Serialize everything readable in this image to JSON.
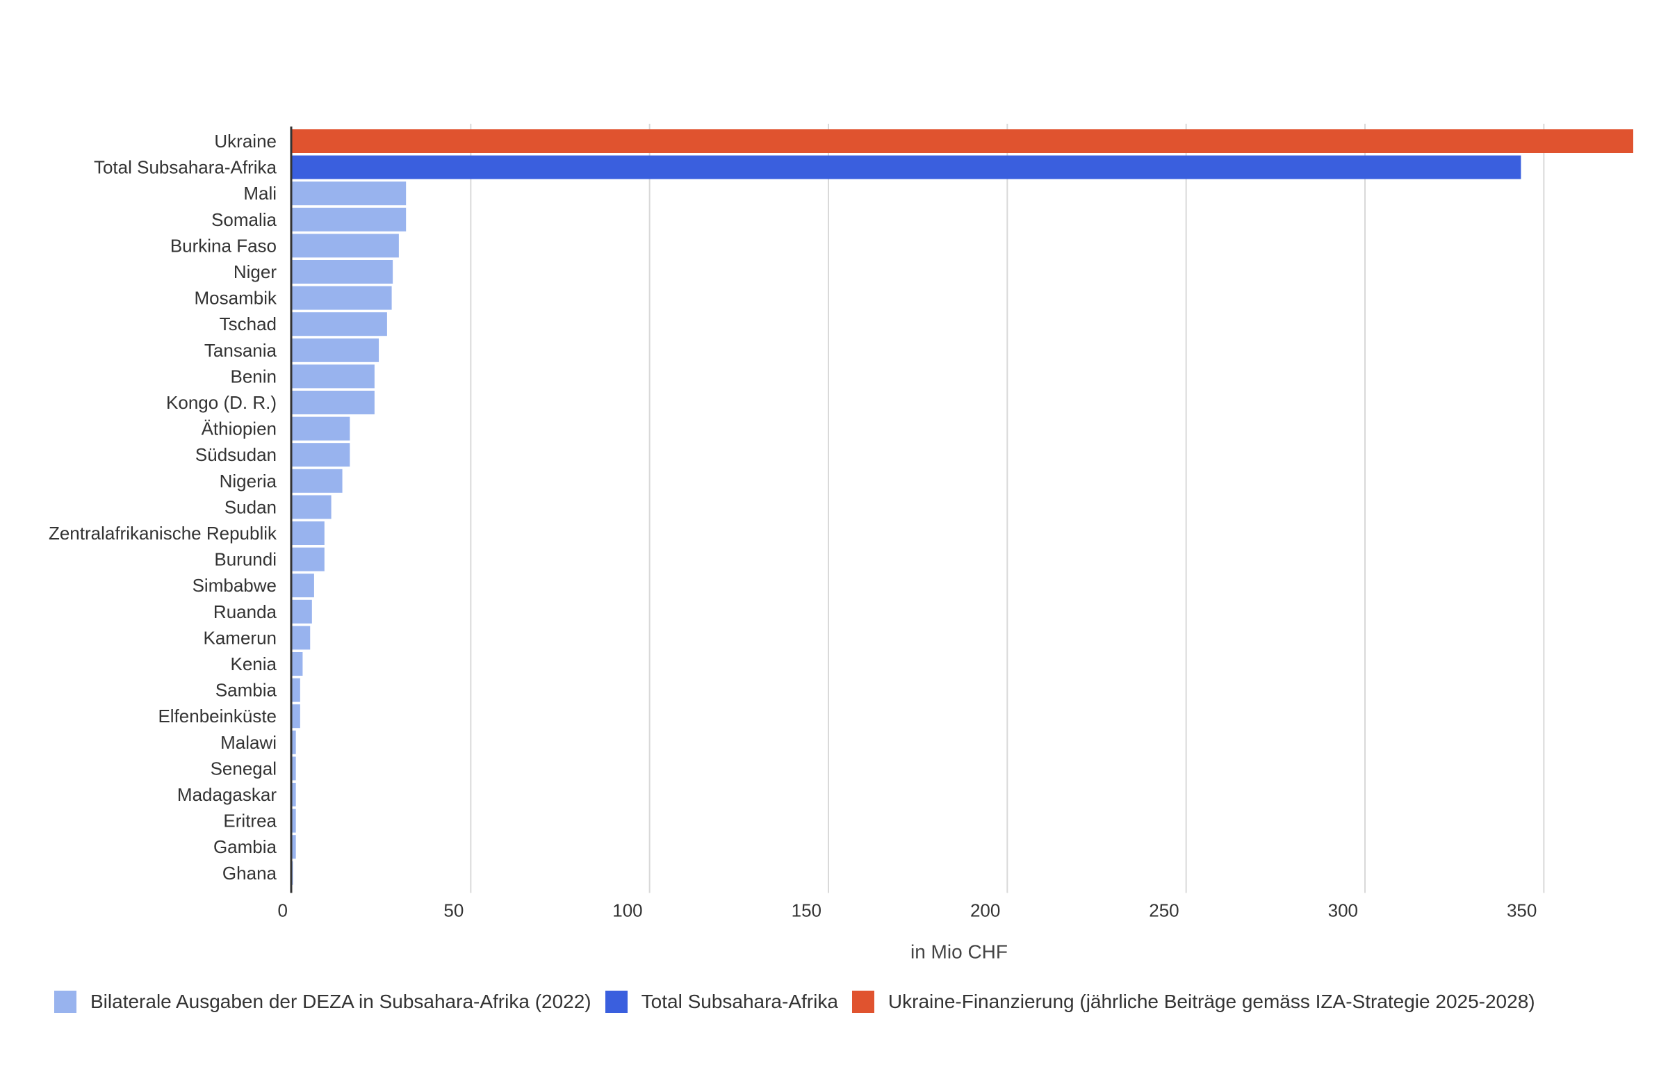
{
  "chart_data": {
    "type": "bar",
    "orientation": "horizontal",
    "categories": [
      "Ukraine",
      "Total Subsahara-Afrika",
      "Mali",
      "Somalia",
      "Burkina Faso",
      "Niger",
      "Mosambik",
      "Tschad",
      "Tansania",
      "Benin",
      "Kongo (D. R.)",
      "Äthiopien",
      "Südsudan",
      "Nigeria",
      "Sudan",
      "Zentralafrikanische Republik",
      "Burundi",
      "Simbabwe",
      "Ruanda",
      "Kamerun",
      "Kenia",
      "Sambia",
      "Elfenbeinküste",
      "Malawi",
      "Senegal",
      "Madagaskar",
      "Eritrea",
      "Gambia",
      "Ghana"
    ],
    "values": [
      375,
      343.6,
      31.9,
      31.9,
      29.9,
      28.2,
      27.9,
      26.6,
      24.3,
      23.1,
      23.1,
      16.2,
      16.2,
      14.1,
      11.0,
      9.1,
      9.1,
      6.2,
      5.6,
      5.1,
      3.0,
      2.3,
      2.3,
      1.1,
      1.1,
      1.1,
      1.1,
      1.1,
      0.3
    ],
    "series_index": [
      2,
      1,
      0,
      0,
      0,
      0,
      0,
      0,
      0,
      0,
      0,
      0,
      0,
      0,
      0,
      0,
      0,
      0,
      0,
      0,
      0,
      0,
      0,
      0,
      0,
      0,
      0,
      0,
      0
    ],
    "series": [
      {
        "name": "Bilaterale Ausgaben der DEZA in Subsahara-Afrika (2022)",
        "color": "#98b3ee"
      },
      {
        "name": "Total Subsahara-Afrika",
        "color": "#3a5fde"
      },
      {
        "name": "Ukraine-Finanzierung (jährliche Beiträge gemäss IZA-Strategie 2025-2028)",
        "color": "#e0532f"
      }
    ],
    "xlabel": "in Mio CHF",
    "ylabel": "",
    "title": "",
    "xlim": [
      0,
      375
    ],
    "xticks": [
      0,
      50,
      100,
      150,
      200,
      250,
      300,
      350
    ],
    "grid": true,
    "legend_position": "bottom"
  }
}
